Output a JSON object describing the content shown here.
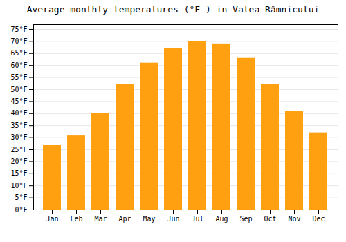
{
  "chart_data": {
    "type": "bar",
    "title": "Average monthly temperatures (°F ) in Valea Râmnicului",
    "categories": [
      "Jan",
      "Feb",
      "Mar",
      "Apr",
      "May",
      "Jun",
      "Jul",
      "Aug",
      "Sep",
      "Oct",
      "Nov",
      "Dec"
    ],
    "values": [
      27,
      31,
      40,
      52,
      61,
      67,
      70,
      69,
      63,
      52,
      41,
      32
    ],
    "color": "#FFA010",
    "ylim": [
      0,
      77
    ],
    "yticks": [
      {
        "value": 0,
        "label": "0°F"
      },
      {
        "value": 5,
        "label": "5°F"
      },
      {
        "value": 10,
        "label": "10°F"
      },
      {
        "value": 15,
        "label": "15°F"
      },
      {
        "value": 20,
        "label": "20°F"
      },
      {
        "value": 25,
        "label": "25°F"
      },
      {
        "value": 30,
        "label": "30°F"
      },
      {
        "value": 35,
        "label": "35°F"
      },
      {
        "value": 40,
        "label": "40°F"
      },
      {
        "value": 45,
        "label": "45°F"
      },
      {
        "value": 50,
        "label": "50°F"
      },
      {
        "value": 55,
        "label": "55°F"
      },
      {
        "value": 60,
        "label": "60°F"
      },
      {
        "value": 65,
        "label": "65°F"
      },
      {
        "value": 70,
        "label": "70°F"
      },
      {
        "value": 75,
        "label": "75°F"
      }
    ],
    "grid": true
  }
}
